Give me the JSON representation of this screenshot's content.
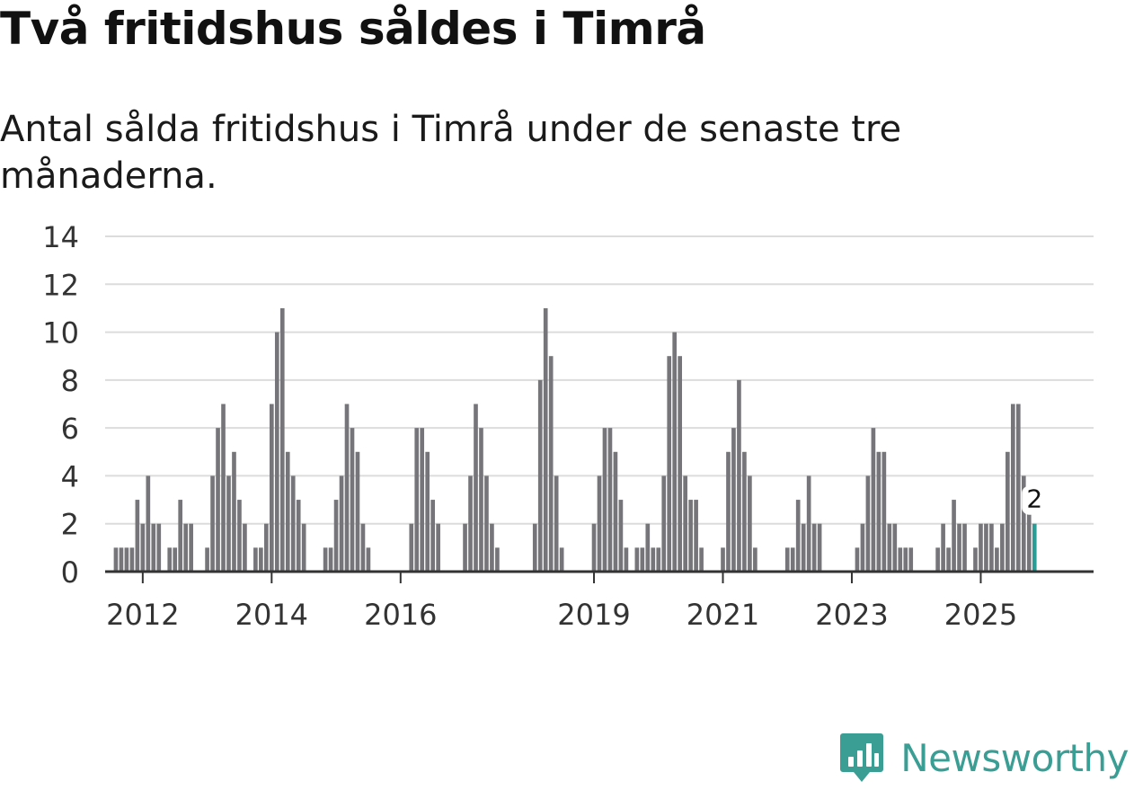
{
  "title": "Två fritidshus såldes i Timrå",
  "subtitle": "Antal sålda fritidshus i Timrå under de senaste tre månaderna.",
  "brand": "Newsworthy",
  "colors": {
    "bar": "#76767a",
    "highlight": "#2a9d96",
    "grid": "#dcdcdc",
    "axis": "#333333",
    "brand": "#3a9e95"
  },
  "chart_data": {
    "type": "bar",
    "title": "Två fritidshus såldes i Timrå",
    "subtitle": "Antal sålda fritidshus i Timrå under de senaste tre månaderna.",
    "xlabel": "",
    "ylabel": "",
    "ylim": [
      0,
      14
    ],
    "y_ticks": [
      0,
      2,
      4,
      6,
      8,
      10,
      12,
      14
    ],
    "grid": true,
    "x_range": [
      2011.4167,
      2026.75
    ],
    "x_ticks": [
      {
        "value": 2012,
        "label": "2012"
      },
      {
        "value": 2014,
        "label": "2014"
      },
      {
        "value": 2016,
        "label": "2016"
      },
      {
        "value": 2019,
        "label": "2019"
      },
      {
        "value": 2021,
        "label": "2021"
      },
      {
        "value": 2023,
        "label": "2023"
      },
      {
        "value": 2025,
        "label": "2025"
      }
    ],
    "start": "2011-01",
    "frequency": "monthly",
    "values": [
      0,
      0,
      0,
      0,
      0,
      0,
      0,
      1,
      1,
      1,
      1,
      3,
      2,
      4,
      2,
      2,
      0,
      1,
      1,
      3,
      2,
      2,
      0,
      0,
      1,
      4,
      6,
      7,
      4,
      5,
      3,
      2,
      0,
      1,
      1,
      2,
      7,
      10,
      11,
      5,
      4,
      3,
      2,
      0,
      0,
      0,
      1,
      1,
      3,
      4,
      7,
      6,
      5,
      2,
      1,
      0,
      0,
      0,
      0,
      0,
      0,
      0,
      2,
      6,
      6,
      5,
      3,
      2,
      0,
      0,
      0,
      0,
      2,
      4,
      7,
      6,
      4,
      2,
      1,
      0,
      0,
      0,
      0,
      0,
      0,
      2,
      8,
      11,
      9,
      4,
      1,
      0,
      0,
      0,
      0,
      0,
      2,
      4,
      6,
      6,
      5,
      3,
      1,
      0,
      1,
      1,
      2,
      1,
      1,
      4,
      9,
      10,
      9,
      4,
      3,
      3,
      1,
      0,
      0,
      0,
      1,
      5,
      6,
      8,
      5,
      4,
      1,
      0,
      0,
      0,
      0,
      0,
      1,
      1,
      3,
      2,
      4,
      2,
      2,
      0,
      0,
      0,
      0,
      0,
      0,
      1,
      2,
      4,
      6,
      5,
      5,
      2,
      2,
      1,
      1,
      1,
      0,
      0,
      0,
      0,
      1,
      2,
      1,
      3,
      2,
      2,
      0,
      1,
      2,
      2,
      2,
      1,
      2,
      5,
      7,
      7,
      4,
      3,
      2
    ],
    "highlight": {
      "date": "2025-11",
      "value": 2,
      "label": "2"
    }
  }
}
